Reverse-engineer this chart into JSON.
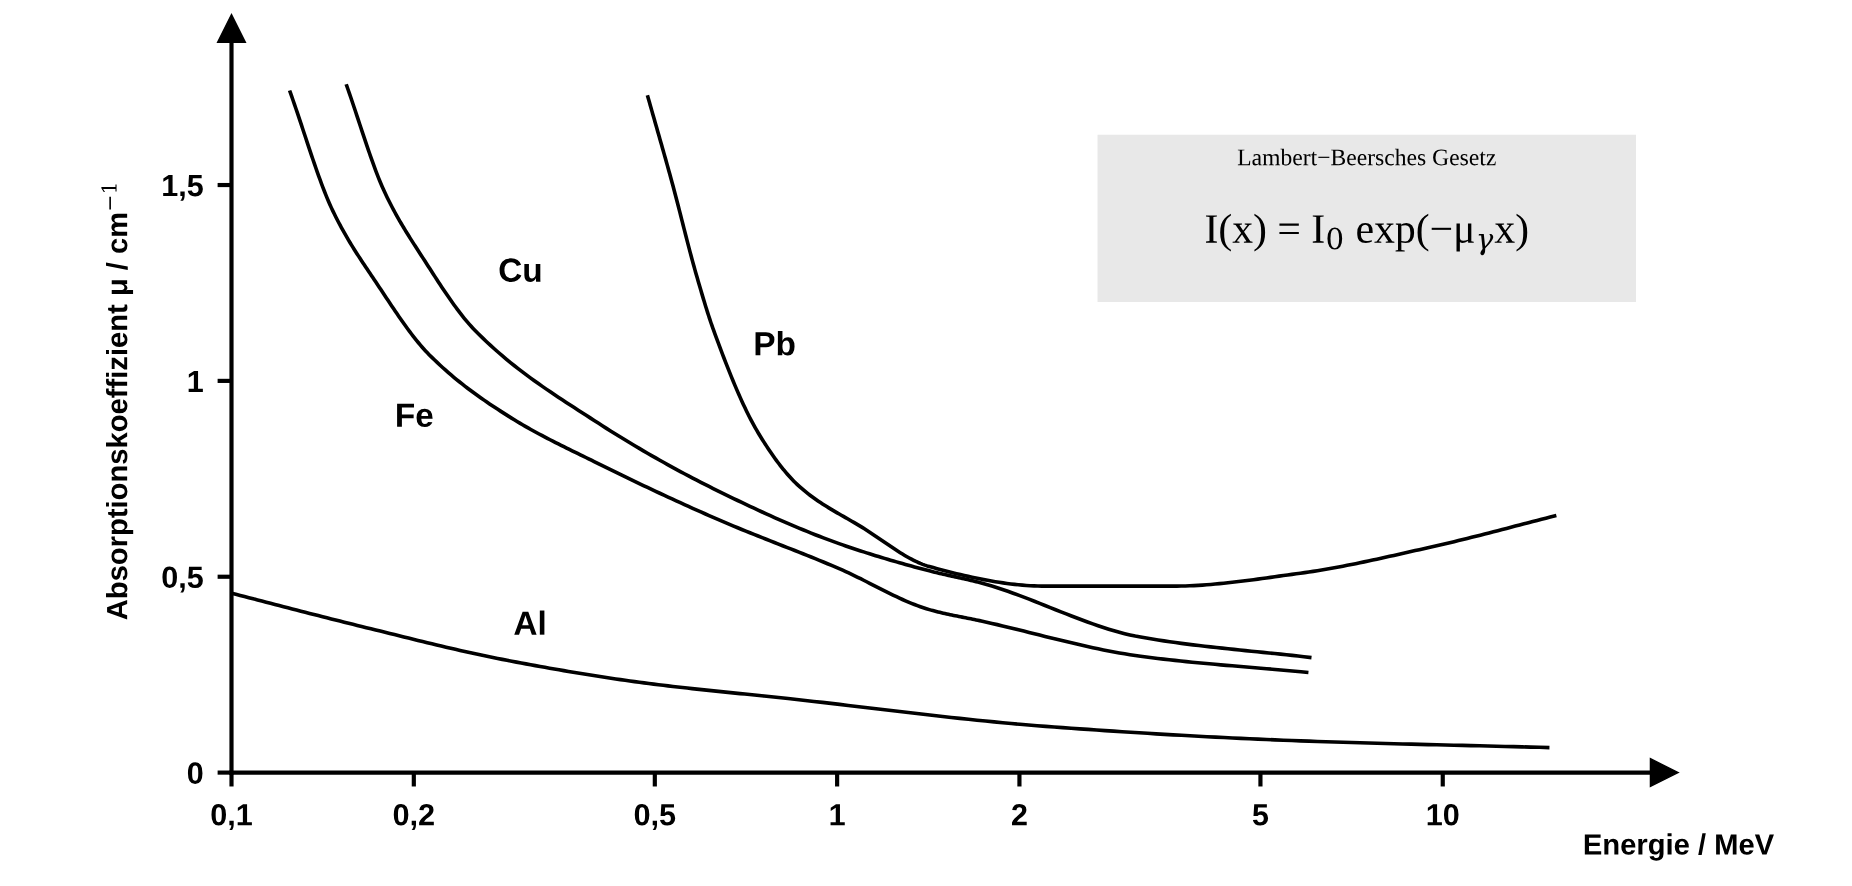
{
  "chart_data": {
    "type": "line",
    "xlabel": "Energie / MeV",
    "ylabel": "Absorptionskoeffizient μ / cm$^{−1}$",
    "series": [
      {
        "name": "Al",
        "color": "#000000",
        "x": [
          0.1,
          0.164,
          0.28,
          0.48,
          0.83,
          2.21,
          5.82,
          14.9
        ],
        "values": [
          0.458,
          0.373,
          0.289,
          0.229,
          0.189,
          0.118,
          0.081,
          0.064
        ]
      },
      {
        "name": "Fe",
        "color": "#000000",
        "x": [
          0.125,
          0.147,
          0.173,
          0.212,
          0.29,
          0.397,
          0.634,
          1.01,
          1.42,
          1.73,
          3.17,
          5.96
        ],
        "values": [
          1.737,
          1.434,
          1.253,
          1.067,
          0.905,
          0.794,
          0.647,
          0.52,
          0.416,
          0.387,
          0.297,
          0.256
        ]
      },
      {
        "name": "Cu",
        "color": "#000000",
        "x": [
          0.155,
          0.179,
          0.207,
          0.252,
          0.397,
          0.634,
          1.01,
          1.42,
          1.73,
          3.17,
          6.03
        ],
        "values": [
          1.753,
          1.482,
          1.314,
          1.13,
          0.899,
          0.72,
          0.584,
          0.515,
          0.484,
          0.346,
          0.294
        ]
      },
      {
        "name": "Pb",
        "color": "#000000",
        "x": [
          0.487,
          0.534,
          0.584,
          0.625,
          0.741,
          0.867,
          1.1,
          1.42,
          2.21,
          3.58,
          5.82,
          9.45,
          15.3
        ],
        "values": [
          1.725,
          1.506,
          1.277,
          1.13,
          0.867,
          0.73,
          0.626,
          0.526,
          0.476,
          0.476,
          0.509,
          0.574,
          0.655
        ]
      }
    ],
    "log": "x",
    "xlim": [
      0.1,
      22
    ],
    "ylim": [
      0,
      1.9
    ],
    "xticks": [
      {
        "value": 0.1,
        "label": "0,1"
      },
      {
        "value": 0.2,
        "label": "0,2"
      },
      {
        "value": 0.5,
        "label": "0,5"
      },
      1,
      2,
      5,
      10
    ],
    "yticks": [
      0,
      {
        "value": 0.5,
        "label": "0,5"
      },
      1,
      {
        "value": 1.5,
        "label": "1,5"
      }
    ],
    "grid": false,
    "legend": false,
    "marker": "none",
    "line_style": "solid",
    "annotations": [
      "Lambert−Beersches Gesetz",
      "I(x) = I$_{0}$ exp(−μ$_{γ}$x)"
    ]
  }
}
